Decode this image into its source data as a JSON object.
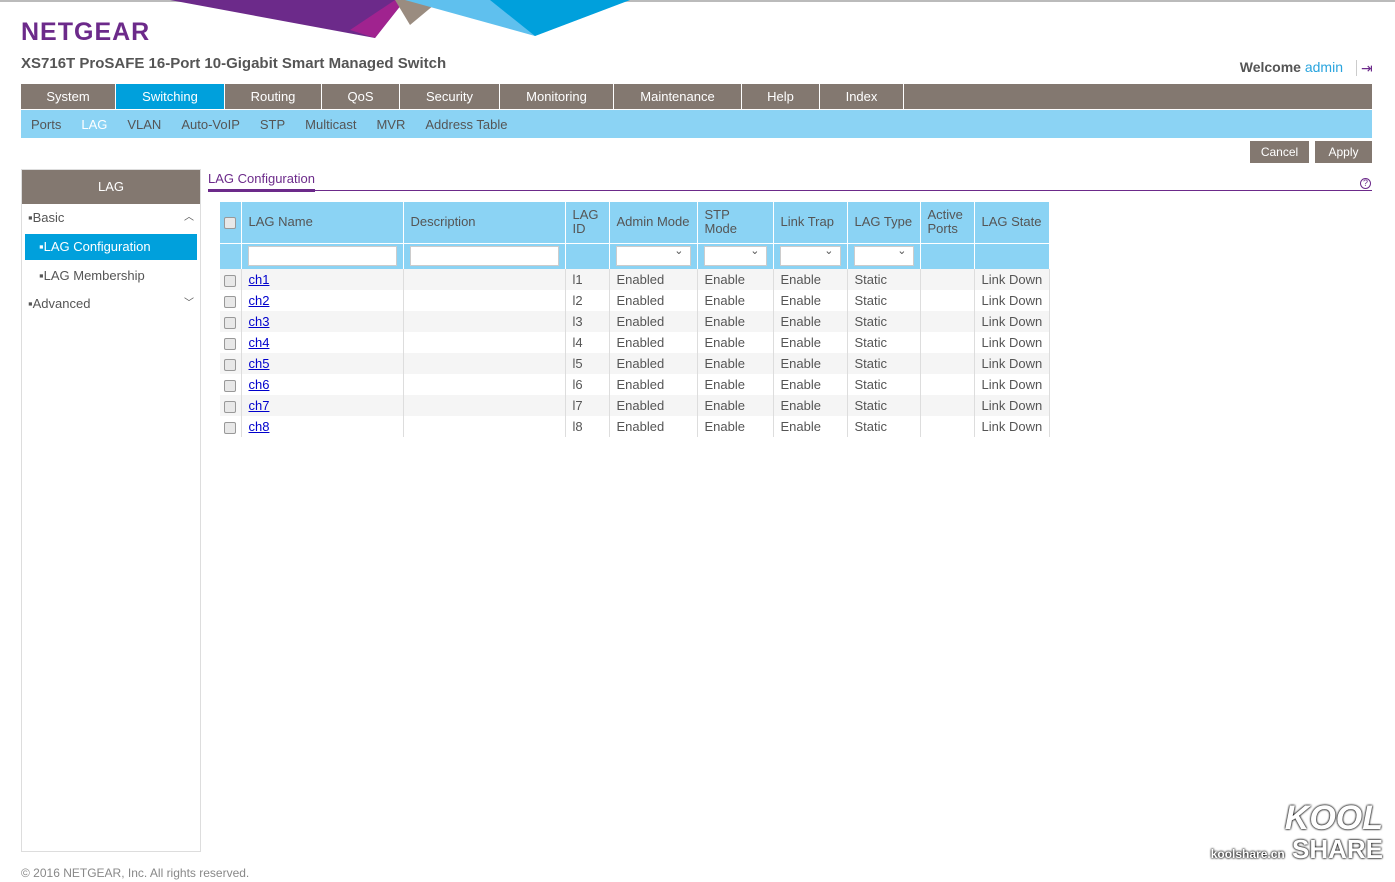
{
  "brand": "NETGEAR",
  "product": "XS716T ProSAFE 16-Port 10-Gigabit Smart Managed Switch",
  "welcome": {
    "label": "Welcome",
    "user": "admin"
  },
  "main_nav": [
    "System",
    "Switching",
    "Routing",
    "QoS",
    "Security",
    "Monitoring",
    "Maintenance",
    "Help",
    "Index"
  ],
  "main_nav_active": "Switching",
  "sub_nav": [
    "Ports",
    "LAG",
    "VLAN",
    "Auto-VoIP",
    "STP",
    "Multicast",
    "MVR",
    "Address Table"
  ],
  "sub_nav_active": "LAG",
  "buttons": {
    "cancel": "Cancel",
    "apply": "Apply"
  },
  "sidebar": {
    "title": "LAG",
    "items": [
      {
        "label": "Basic"
      },
      {
        "label": "LAG Configuration"
      },
      {
        "label": "LAG Membership"
      },
      {
        "label": "Advanced"
      }
    ]
  },
  "page_title": "LAG Configuration",
  "table": {
    "headers": [
      "LAG Name",
      "Description",
      "LAG ID",
      "Admin Mode",
      "STP Mode",
      "Link Trap",
      "LAG Type",
      "Active Ports",
      "LAG State"
    ],
    "rows": [
      [
        "ch1",
        "",
        "l1",
        "Enabled",
        "Enable",
        "Enable",
        "Static",
        "",
        "Link Down"
      ],
      [
        "ch2",
        "",
        "l2",
        "Enabled",
        "Enable",
        "Enable",
        "Static",
        "",
        "Link Down"
      ],
      [
        "ch3",
        "",
        "l3",
        "Enabled",
        "Enable",
        "Enable",
        "Static",
        "",
        "Link Down"
      ],
      [
        "ch4",
        "",
        "l4",
        "Enabled",
        "Enable",
        "Enable",
        "Static",
        "",
        "Link Down"
      ],
      [
        "ch5",
        "",
        "l5",
        "Enabled",
        "Enable",
        "Enable",
        "Static",
        "",
        "Link Down"
      ],
      [
        "ch6",
        "",
        "l6",
        "Enabled",
        "Enable",
        "Enable",
        "Static",
        "",
        "Link Down"
      ],
      [
        "ch7",
        "",
        "l7",
        "Enabled",
        "Enable",
        "Enable",
        "Static",
        "",
        "Link Down"
      ],
      [
        "ch8",
        "",
        "l8",
        "Enabled",
        "Enable",
        "Enable",
        "Static",
        "",
        "Link Down"
      ]
    ]
  },
  "footer": "© 2016 NETGEAR, Inc. All rights reserved.",
  "watermark": {
    "logo": "KOOL SHARE",
    "site": "koolshare.cn"
  },
  "colors": {
    "purple": "#6c2a8a",
    "brown": "#837870",
    "blue": "#00a0dc",
    "light_blue": "#8bd3f4"
  }
}
